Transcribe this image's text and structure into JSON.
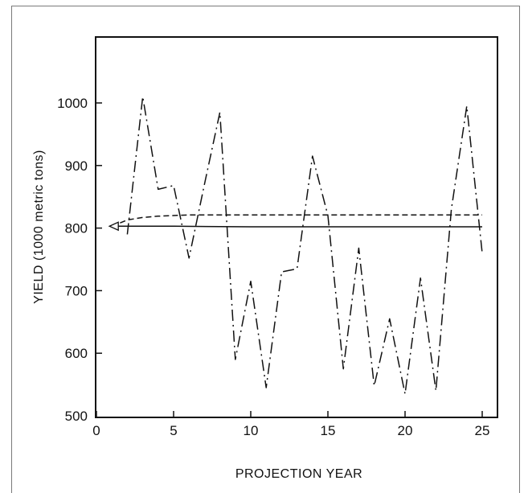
{
  "chart_data": {
    "type": "line",
    "title": "",
    "xlabel": "PROJECTION YEAR",
    "ylabel": "YIELD (1000 metric tons)",
    "xlim": [
      0,
      26
    ],
    "ylim": [
      500,
      1110
    ],
    "xticks": [
      0,
      5,
      10,
      15,
      20,
      25
    ],
    "yticks": [
      500,
      600,
      700,
      800,
      900,
      1000
    ],
    "series": [
      {
        "style": "dash-dot",
        "x": [
          2,
          3,
          4,
          5,
          6,
          7,
          8,
          9,
          10,
          11,
          12,
          13,
          14,
          15,
          16,
          17,
          18,
          19,
          20,
          21,
          22,
          23,
          24,
          25
        ],
        "values": [
          790,
          1010,
          862,
          868,
          752,
          870,
          985,
          590,
          715,
          545,
          730,
          735,
          915,
          820,
          575,
          768,
          548,
          655,
          535,
          720,
          540,
          830,
          995,
          760
        ]
      },
      {
        "style": "dashed",
        "x": [
          1,
          2,
          3,
          4,
          5,
          6,
          8,
          10,
          15,
          20,
          25
        ],
        "values": [
          803,
          813,
          817,
          819,
          820,
          821,
          821,
          821,
          821,
          821,
          821
        ]
      },
      {
        "style": "solid",
        "x": [
          1,
          5,
          10,
          15,
          20,
          25
        ],
        "values": [
          803,
          803,
          802,
          802,
          802,
          802
        ]
      }
    ],
    "start_marker": {
      "x": 1,
      "y": 803,
      "symbol": "open-triangle-left"
    },
    "grid": false,
    "colors": {
      "line": "#111111",
      "frame": "#7a7a7a"
    }
  }
}
